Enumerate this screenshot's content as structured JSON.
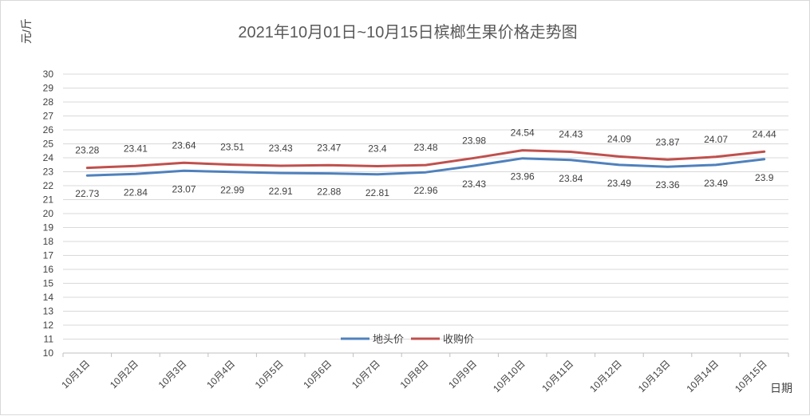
{
  "chart_data": {
    "type": "line",
    "title": "2021年10月01日~10月15日槟榔生果价格走势图",
    "ylabel": "元/斤",
    "xlabel": "日期",
    "ylim": [
      10,
      30
    ],
    "ytick_step": 1,
    "grid": true,
    "legend_position": "bottom-center",
    "categories": [
      "10月1日",
      "10月2日",
      "10月3日",
      "10月4日",
      "10月5日",
      "10月6日",
      "10月7日",
      "10月8日",
      "10月9日",
      "10月10日",
      "10月11日",
      "10月12日",
      "10月13日",
      "10月14日",
      "10月15日"
    ],
    "series": [
      {
        "name": "地头价",
        "color": "#4f81bd",
        "label_position": "below",
        "values": [
          22.73,
          22.84,
          23.07,
          22.99,
          22.91,
          22.88,
          22.81,
          22.96,
          23.43,
          23.96,
          23.84,
          23.49,
          23.36,
          23.49,
          23.9
        ]
      },
      {
        "name": "收购价",
        "color": "#c0504d",
        "label_position": "above",
        "values": [
          23.28,
          23.41,
          23.64,
          23.51,
          23.43,
          23.47,
          23.4,
          23.48,
          23.98,
          24.54,
          24.43,
          24.09,
          23.87,
          24.07,
          24.44
        ]
      }
    ]
  }
}
